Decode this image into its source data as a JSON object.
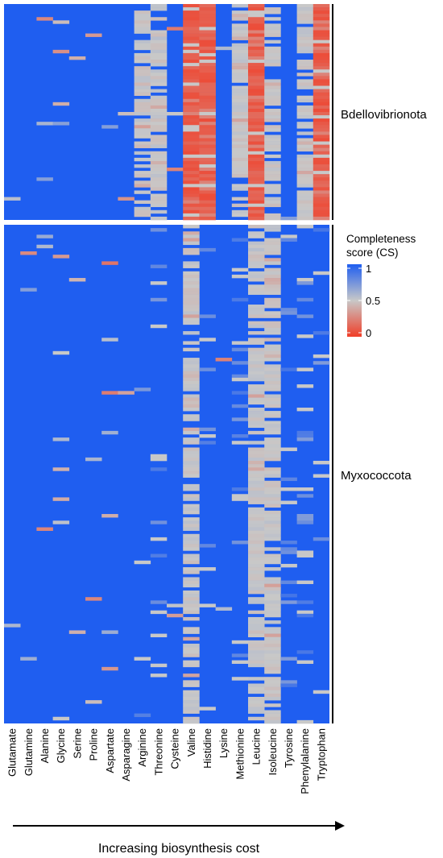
{
  "chart_data": {
    "type": "heatmap",
    "columns": [
      "Glutamate",
      "Glutamine",
      "Alanine",
      "Glycine",
      "Serine",
      "Proline",
      "Aspartate",
      "Asparagine",
      "Arginine",
      "Threonine",
      "Cysteine",
      "Valine",
      "Histidine",
      "Lysine",
      "Methionine",
      "Leucine",
      "Isoleucine",
      "Tyrosine",
      "Phenylalanine",
      "Tryptophan"
    ],
    "facets": [
      "Bdellovibrionota",
      "Myxococcota"
    ],
    "legend": {
      "title_line1": "Completeness",
      "title_line2": "score (CS)",
      "ticks": [
        "1",
        "0.5",
        "0"
      ],
      "range": [
        0,
        1
      ],
      "colors": {
        "high": "#1f5ef0",
        "mid": "#c8c8c8",
        "low": "#f03e28"
      }
    },
    "x_arrow_label": "Increasing biosynthesis cost",
    "column_summary": {
      "Bdellovibrionota": [
        1,
        1,
        1,
        1,
        1,
        0.99,
        1,
        1,
        0.55,
        0.75,
        1,
        0.2,
        0.08,
        1,
        0.7,
        0.4,
        0.55,
        1,
        0.55,
        0.08
      ],
      "Myxococcota": [
        1,
        1,
        1,
        1,
        1,
        1,
        1,
        1,
        0.97,
        0.96,
        1,
        0.6,
        0.97,
        0.99,
        0.93,
        0.55,
        0.7,
        0.95,
        0.92,
        0.98
      ]
    }
  }
}
